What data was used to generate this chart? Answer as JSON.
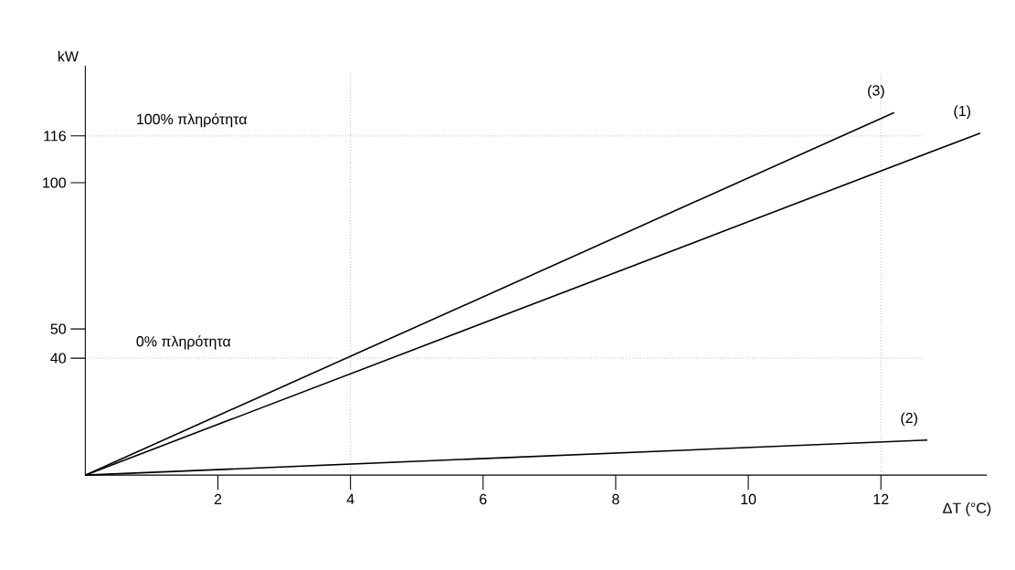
{
  "chart_data": {
    "type": "line",
    "xlabel": "ΔT (°C)",
    "ylabel": "kW",
    "xlim": [
      0,
      13.6
    ],
    "ylim": [
      0,
      140
    ],
    "xticks": [
      2,
      4,
      6,
      8,
      10,
      12
    ],
    "yticks": [
      40,
      50,
      100,
      116
    ],
    "series": [
      {
        "name": "(1)",
        "color": "#000000",
        "x": [
          0,
          13.5
        ],
        "values": [
          0,
          117
        ]
      },
      {
        "name": "(2)",
        "color": "#000000",
        "x": [
          0,
          12.7
        ],
        "values": [
          0,
          12
        ]
      },
      {
        "name": "(3)",
        "color": "#000000",
        "x": [
          0,
          12.2
        ],
        "values": [
          0,
          124
        ]
      }
    ],
    "ref_lines": [
      {
        "axis": "y",
        "value": 116,
        "label": "100% πληρότητα",
        "color": "#000000",
        "line_style": "dotted"
      },
      {
        "axis": "y",
        "value": 40,
        "label": "0% πληρότητα",
        "color": "#000000",
        "line_style": "dotted"
      },
      {
        "axis": "x",
        "value": 4,
        "color": "#000000",
        "line_style": "dotted"
      },
      {
        "axis": "x",
        "value": 12,
        "color": "#000000",
        "line_style": "dotted"
      }
    ],
    "grid": false,
    "legend": false,
    "marker": "none",
    "line_style": "solid"
  }
}
